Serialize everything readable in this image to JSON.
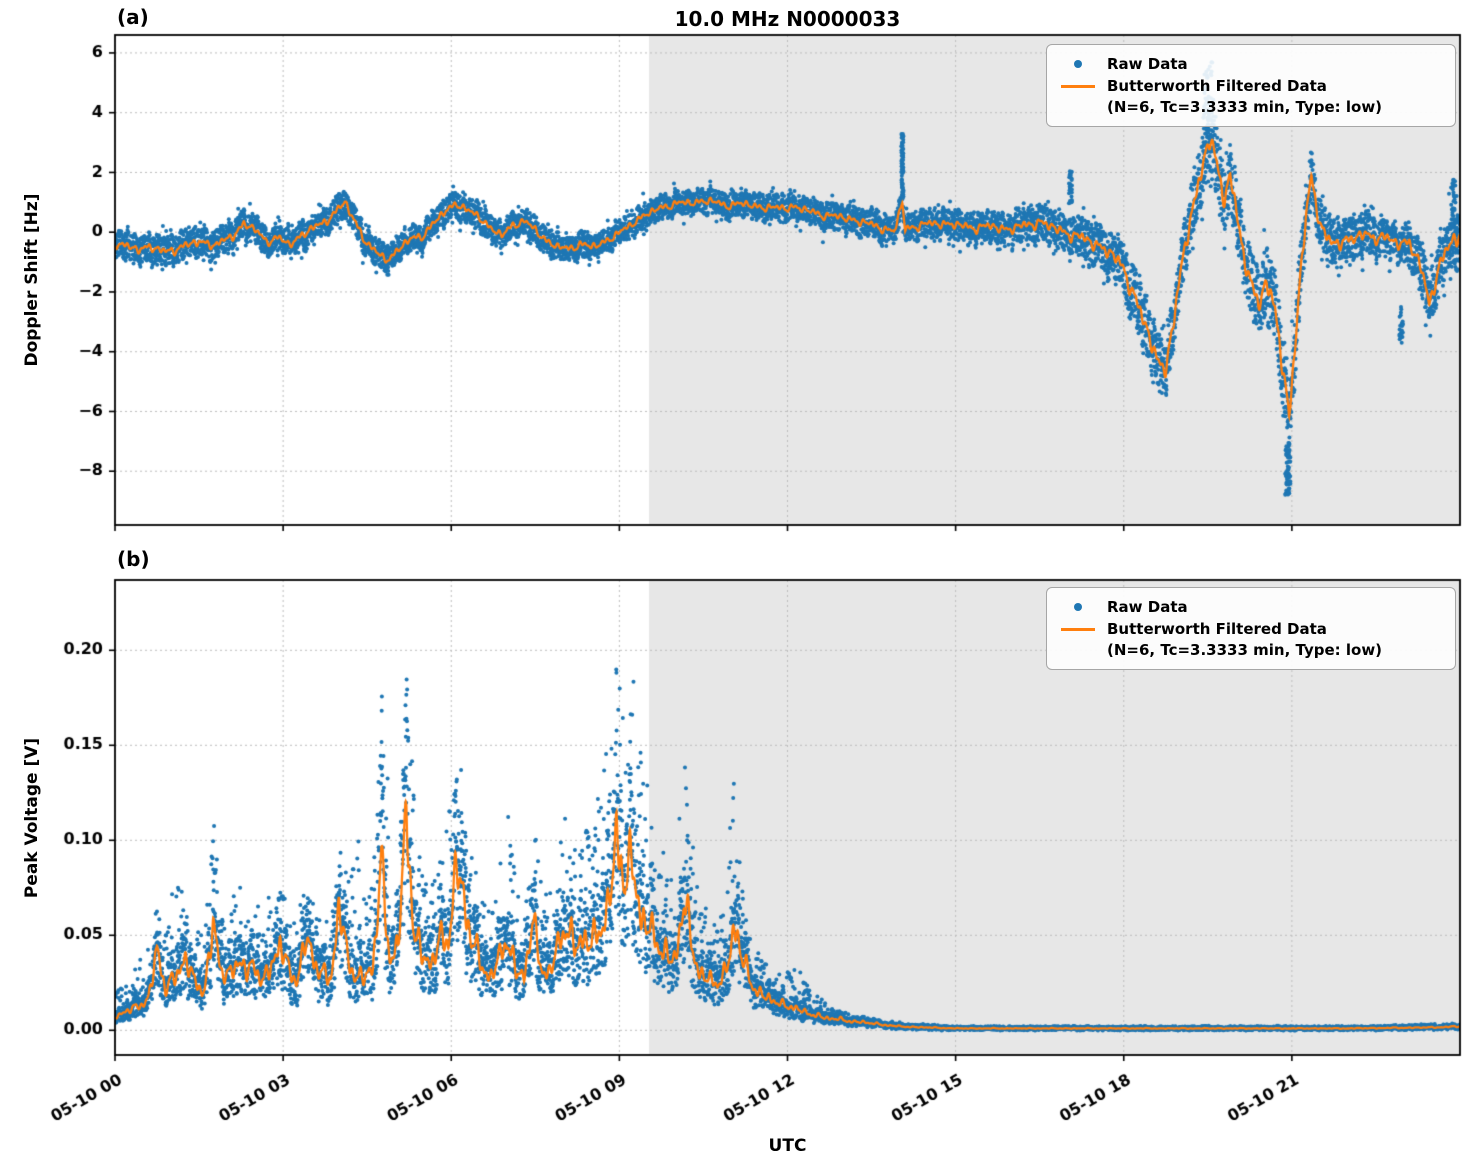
{
  "figure": {
    "title": "10.0 MHz N0000033",
    "xlabel": "UTC",
    "panel_a_tag": "(a)",
    "panel_b_tag": "(b)",
    "colors": {
      "raw": "#1f77b4",
      "filtered": "#ff7f0e",
      "shade": "#e7e7e7",
      "grid": "#bdbdbd",
      "spine": "#000000",
      "background": "#ffffff"
    },
    "x_range_hours": [
      0,
      24
    ],
    "x_tick_hours": [
      0,
      3,
      6,
      9,
      12,
      15,
      18,
      21
    ],
    "x_tick_labels": [
      "05-10 00",
      "05-10 03",
      "05-10 06",
      "05-10 09",
      "05-10 12",
      "05-10 15",
      "05-10 18",
      "05-10 21"
    ],
    "shade": {
      "start_hour": 9.53,
      "end_hour": 24
    },
    "legend": {
      "raw_label": "Raw Data",
      "filtered_label": "Butterworth Filtered Data",
      "filtered_sublabel": "(N=6, Tc=3.3333 min, Type: low)"
    }
  },
  "chart_data": [
    {
      "type": "scatter",
      "panel_label": "(a)",
      "title": "10.0 MHz N0000033",
      "ylabel": "Doppler Shift [Hz]",
      "xlabel": "UTC",
      "ylim": [
        -9.8,
        6.6
      ],
      "ytick_values": [
        6,
        4,
        2,
        0,
        -2,
        -4,
        -6,
        -8
      ],
      "ytick_labels": [
        "6",
        "4",
        "2",
        "0",
        "−2",
        "−4",
        "−6",
        "−8"
      ],
      "series": [
        {
          "name": "Raw Data",
          "style": "scatter"
        },
        {
          "name": "Butterworth Filtered Data (N=6, Tc=3.3333 min, Type: low)",
          "style": "line"
        }
      ],
      "filtered_x": [
        0,
        0.3,
        0.6,
        0.9,
        1.2,
        1.5,
        1.8,
        2.1,
        2.3,
        2.5,
        2.7,
        2.9,
        3.1,
        3.3,
        3.5,
        3.7,
        3.9,
        4.1,
        4.3,
        4.5,
        4.7,
        4.9,
        5.1,
        5.3,
        5.5,
        5.7,
        5.9,
        6.1,
        6.3,
        6.5,
        6.7,
        6.9,
        7.1,
        7.3,
        7.5,
        7.7,
        7.9,
        8.1,
        8.3,
        8.5,
        8.7,
        8.9,
        9.1,
        9.3,
        9.5,
        9.7,
        10.0,
        10.3,
        10.6,
        10.9,
        11.2,
        11.5,
        11.8,
        12.1,
        12.4,
        12.7,
        13.0,
        13.3,
        13.6,
        13.9,
        14.05,
        14.1,
        14.4,
        14.7,
        15.0,
        15.3,
        15.6,
        15.9,
        16.2,
        16.5,
        16.8,
        17.1,
        17.4,
        17.7,
        18.0,
        18.2,
        18.4,
        18.6,
        18.75,
        18.9,
        19.0,
        19.1,
        19.25,
        19.4,
        19.55,
        19.7,
        19.8,
        19.9,
        20.0,
        20.1,
        20.25,
        20.4,
        20.55,
        20.7,
        20.85,
        20.95,
        21.05,
        21.15,
        21.25,
        21.35,
        21.45,
        21.55,
        21.7,
        21.9,
        22.1,
        22.3,
        22.5,
        22.7,
        22.9,
        23.1,
        23.3,
        23.45,
        23.6,
        23.8,
        24.0
      ],
      "filtered_y": [
        -0.35,
        -0.55,
        -0.5,
        -0.65,
        -0.5,
        -0.3,
        -0.45,
        -0.1,
        0.25,
        0.1,
        -0.3,
        -0.2,
        -0.4,
        -0.15,
        0.1,
        0.3,
        0.6,
        1.0,
        0.3,
        -0.4,
        -0.75,
        -0.9,
        -0.5,
        -0.2,
        -0.1,
        0.3,
        0.75,
        0.95,
        0.7,
        0.55,
        0.1,
        -0.1,
        0.25,
        0.35,
        0.1,
        -0.3,
        -0.5,
        -0.55,
        -0.4,
        -0.5,
        -0.35,
        -0.15,
        0.1,
        0.4,
        0.6,
        0.8,
        0.95,
        1.0,
        1.05,
        0.9,
        0.95,
        0.85,
        0.8,
        0.85,
        0.7,
        0.55,
        0.5,
        0.35,
        0.2,
        0.0,
        1.0,
        0.1,
        0.25,
        0.3,
        0.25,
        0.15,
        0.2,
        0.1,
        0.2,
        0.35,
        0.1,
        -0.1,
        -0.3,
        -0.6,
        -1.2,
        -2.2,
        -3.2,
        -4.3,
        -4.5,
        -3.0,
        -1.5,
        -0.3,
        0.9,
        2.2,
        3.1,
        2.0,
        1.2,
        1.8,
        0.8,
        -0.4,
        -1.6,
        -2.3,
        -1.8,
        -2.6,
        -4.5,
        -6.3,
        -4.0,
        -1.5,
        0.5,
        1.9,
        0.8,
        0.0,
        -0.4,
        -0.3,
        -0.2,
        -0.1,
        -0.15,
        -0.2,
        -0.4,
        -0.3,
        -1.2,
        -2.4,
        -1.3,
        -0.4,
        -0.2
      ],
      "raw_halfwidth_x": [
        0,
        6,
        9.5,
        13,
        14,
        16,
        17,
        17.8,
        18.5,
        19,
        19.5,
        20,
        20.9,
        21.3,
        22,
        23,
        23.4,
        23.8,
        24
      ],
      "raw_halfwidth": [
        0.55,
        0.5,
        0.45,
        0.5,
        0.5,
        0.6,
        0.7,
        0.9,
        1.1,
        1.0,
        1.3,
        1.2,
        1.4,
        1.0,
        0.8,
        0.7,
        1.0,
        1.0,
        1.2
      ],
      "outlier_clusters": [
        {
          "t": 14.05,
          "y": 2.2,
          "n": 70,
          "st": 0.02,
          "sy": 1.1
        },
        {
          "t": 17.05,
          "y": 1.5,
          "n": 35,
          "st": 0.03,
          "sy": 0.55
        },
        {
          "t": 19.5,
          "y": 4.3,
          "n": 60,
          "st": 0.08,
          "sy": 1.5
        },
        {
          "t": 20.93,
          "y": -7.9,
          "n": 70,
          "st": 0.05,
          "sy": 0.9
        },
        {
          "t": 22.95,
          "y": -3.1,
          "n": 25,
          "st": 0.03,
          "sy": 0.6
        },
        {
          "t": 23.9,
          "y": 0.3,
          "n": 50,
          "st": 0.06,
          "sy": 1.5
        }
      ],
      "wiggle_amp": 0.13
    },
    {
      "type": "scatter",
      "panel_label": "(b)",
      "ylabel": "Peak Voltage [V]",
      "xlabel": "UTC",
      "ylim": [
        -0.013,
        0.237
      ],
      "ytick_values": [
        0.0,
        0.05,
        0.1,
        0.15,
        0.2
      ],
      "ytick_labels": [
        "0.00",
        "0.05",
        "0.10",
        "0.15",
        "0.20"
      ],
      "series": [
        {
          "name": "Raw Data",
          "style": "scatter"
        },
        {
          "name": "Butterworth Filtered Data (N=6, Tc=3.3333 min, Type: low)",
          "style": "line"
        }
      ],
      "filtered_x": [
        0,
        0.2,
        0.4,
        0.6,
        0.75,
        0.9,
        1.1,
        1.25,
        1.4,
        1.6,
        1.75,
        1.9,
        2.05,
        2.2,
        2.35,
        2.5,
        2.65,
        2.8,
        2.95,
        3.1,
        3.25,
        3.4,
        3.55,
        3.7,
        3.85,
        4.0,
        4.15,
        4.3,
        4.45,
        4.6,
        4.75,
        4.9,
        5.05,
        5.2,
        5.35,
        5.5,
        5.65,
        5.8,
        5.95,
        6.1,
        6.25,
        6.4,
        6.55,
        6.7,
        6.85,
        7.0,
        7.15,
        7.3,
        7.45,
        7.6,
        7.75,
        7.9,
        8.05,
        8.2,
        8.35,
        8.5,
        8.65,
        8.8,
        8.95,
        9.1,
        9.25,
        9.4,
        9.55,
        9.7,
        9.85,
        10.0,
        10.15,
        10.3,
        10.45,
        10.6,
        10.75,
        10.9,
        11.05,
        11.2,
        11.35,
        11.5,
        11.7,
        11.9,
        12.1,
        12.3,
        12.5,
        12.8,
        13.1,
        13.4,
        13.7,
        14.0,
        14.5,
        15.0,
        16.0,
        18.0,
        20.0,
        22.0,
        23.5,
        24.0
      ],
      "filtered_y": [
        0.007,
        0.01,
        0.012,
        0.018,
        0.04,
        0.022,
        0.03,
        0.038,
        0.025,
        0.022,
        0.055,
        0.03,
        0.028,
        0.04,
        0.03,
        0.032,
        0.027,
        0.035,
        0.045,
        0.03,
        0.028,
        0.048,
        0.035,
        0.03,
        0.028,
        0.065,
        0.035,
        0.03,
        0.028,
        0.032,
        0.085,
        0.04,
        0.045,
        0.107,
        0.05,
        0.04,
        0.035,
        0.045,
        0.05,
        0.09,
        0.06,
        0.045,
        0.035,
        0.028,
        0.035,
        0.05,
        0.032,
        0.028,
        0.055,
        0.035,
        0.03,
        0.042,
        0.055,
        0.045,
        0.05,
        0.042,
        0.055,
        0.065,
        0.1,
        0.075,
        0.09,
        0.06,
        0.05,
        0.045,
        0.04,
        0.038,
        0.065,
        0.045,
        0.03,
        0.026,
        0.024,
        0.03,
        0.058,
        0.035,
        0.025,
        0.02,
        0.016,
        0.013,
        0.013,
        0.009,
        0.008,
        0.006,
        0.005,
        0.004,
        0.003,
        0.002,
        0.0015,
        0.001,
        0.001,
        0.001,
        0.001,
        0.001,
        0.0015,
        0.002
      ],
      "raw_upper_env_y": [
        0.02,
        0.025,
        0.035,
        0.045,
        0.065,
        0.05,
        0.09,
        0.07,
        0.055,
        0.05,
        0.115,
        0.06,
        0.065,
        0.08,
        0.065,
        0.065,
        0.07,
        0.072,
        0.075,
        0.065,
        0.06,
        0.075,
        0.065,
        0.06,
        0.06,
        0.1,
        0.08,
        0.11,
        0.075,
        0.08,
        0.19,
        0.12,
        0.09,
        0.19,
        0.13,
        0.08,
        0.075,
        0.09,
        0.11,
        0.165,
        0.12,
        0.09,
        0.075,
        0.06,
        0.08,
        0.13,
        0.075,
        0.065,
        0.115,
        0.08,
        0.07,
        0.1,
        0.12,
        0.1,
        0.11,
        0.1,
        0.13,
        0.155,
        0.23,
        0.16,
        0.19,
        0.145,
        0.12,
        0.1,
        0.09,
        0.085,
        0.167,
        0.1,
        0.07,
        0.06,
        0.055,
        0.07,
        0.145,
        0.08,
        0.06,
        0.045,
        0.035,
        0.028,
        0.035,
        0.03,
        0.02,
        0.012,
        0.009,
        0.007,
        0.005,
        0.004,
        0.003,
        0.002,
        0.002,
        0.002,
        0.002,
        0.002,
        0.003,
        0.003
      ],
      "wiggle_amp": 0.18
    }
  ]
}
